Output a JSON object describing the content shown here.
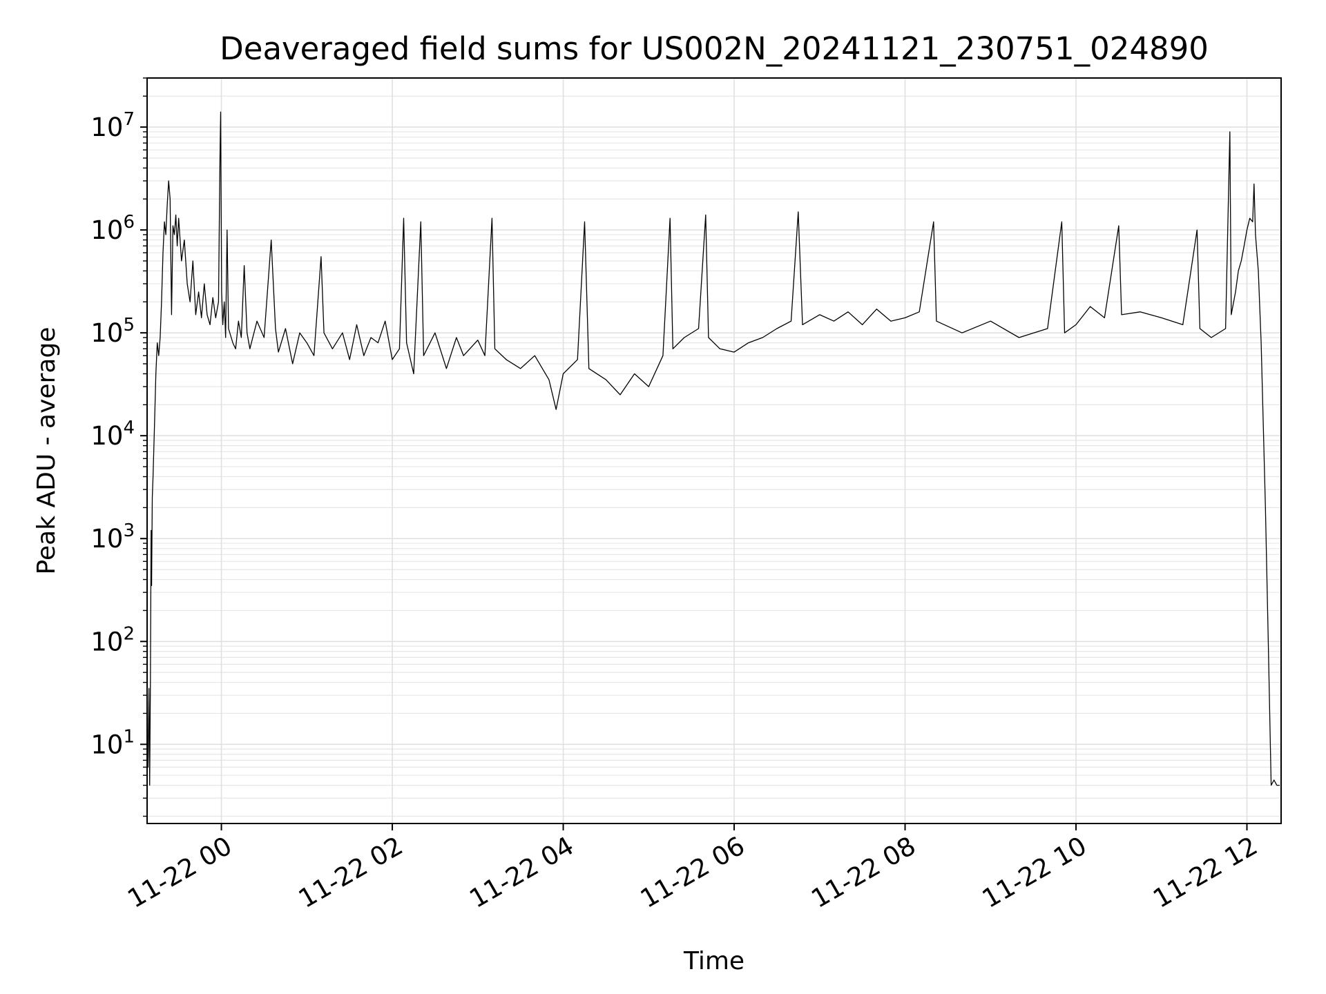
{
  "chart_data": {
    "type": "line",
    "title": "Deaveraged field sums for US002N_20241121_230751_024890",
    "xlabel": "Time",
    "ylabel": "Peak ADU - average",
    "yscale": "log",
    "ylim": [
      1.7,
      30000000
    ],
    "xlim": [
      "2024-11-21 23:07:51",
      "2024-11-22 12:24:00"
    ],
    "grid": true,
    "x_ticks": [
      {
        "value": "2024-11-22 00:00",
        "label": "11-22 00"
      },
      {
        "value": "2024-11-22 02:00",
        "label": "11-22 02"
      },
      {
        "value": "2024-11-22 04:00",
        "label": "11-22 04"
      },
      {
        "value": "2024-11-22 06:00",
        "label": "11-22 06"
      },
      {
        "value": "2024-11-22 08:00",
        "label": "11-22 08"
      },
      {
        "value": "2024-11-22 10:00",
        "label": "11-22 10"
      },
      {
        "value": "2024-11-22 12:00",
        "label": "11-22 12"
      }
    ],
    "y_ticks": [
      {
        "value": 10,
        "base": "10",
        "exp": "1"
      },
      {
        "value": 100,
        "base": "10",
        "exp": "2"
      },
      {
        "value": 1000,
        "base": "10",
        "exp": "3"
      },
      {
        "value": 10000,
        "base": "10",
        "exp": "4"
      },
      {
        "value": 100000,
        "base": "10",
        "exp": "5"
      },
      {
        "value": 1000000,
        "base": "10",
        "exp": "6"
      },
      {
        "value": 10000000,
        "base": "10",
        "exp": "7"
      }
    ],
    "series": [
      {
        "color": "#000000",
        "points": [
          [
            "2024-11-21 23:07:51",
            8
          ],
          [
            "2024-11-21 23:08:30",
            6
          ],
          [
            "2024-11-21 23:09:10",
            35
          ],
          [
            "2024-11-21 23:09:40",
            4
          ],
          [
            "2024-11-21 23:10:10",
            40
          ],
          [
            "2024-11-21 23:10:40",
            1200
          ],
          [
            "2024-11-21 23:11:00",
            350
          ],
          [
            "2024-11-21 23:11:30",
            2500
          ],
          [
            "2024-11-21 23:12:00",
            4000
          ],
          [
            "2024-11-21 23:13:00",
            12000
          ],
          [
            "2024-11-21 23:14:00",
            40000
          ],
          [
            "2024-11-21 23:15:00",
            80000
          ],
          [
            "2024-11-21 23:16:00",
            60000
          ],
          [
            "2024-11-21 23:17:00",
            90000
          ],
          [
            "2024-11-21 23:18:00",
            200000
          ],
          [
            "2024-11-21 23:19:00",
            600000
          ],
          [
            "2024-11-21 23:20:00",
            1200000
          ],
          [
            "2024-11-21 23:21:00",
            900000
          ],
          [
            "2024-11-21 23:22:00",
            1800000
          ],
          [
            "2024-11-21 23:23:00",
            3000000
          ],
          [
            "2024-11-21 23:24:00",
            2000000
          ],
          [
            "2024-11-21 23:25:00",
            150000
          ],
          [
            "2024-11-21 23:26:00",
            1100000
          ],
          [
            "2024-11-21 23:27:00",
            900000
          ],
          [
            "2024-11-21 23:28:00",
            1400000
          ],
          [
            "2024-11-21 23:29:00",
            700000
          ],
          [
            "2024-11-21 23:30:00",
            1300000
          ],
          [
            "2024-11-21 23:32:00",
            500000
          ],
          [
            "2024-11-21 23:34:00",
            800000
          ],
          [
            "2024-11-21 23:36:00",
            300000
          ],
          [
            "2024-11-21 23:38:00",
            200000
          ],
          [
            "2024-11-21 23:40:00",
            500000
          ],
          [
            "2024-11-21 23:42:00",
            150000
          ],
          [
            "2024-11-21 23:44:00",
            250000
          ],
          [
            "2024-11-21 23:46:00",
            140000
          ],
          [
            "2024-11-21 23:48:00",
            300000
          ],
          [
            "2024-11-21 23:50:00",
            150000
          ],
          [
            "2024-11-21 23:52:00",
            120000
          ],
          [
            "2024-11-21 23:54:00",
            220000
          ],
          [
            "2024-11-21 23:56:00",
            140000
          ],
          [
            "2024-11-21 23:58:00",
            200000
          ],
          [
            "2024-11-21 23:59:00",
            5000000
          ],
          [
            "2024-11-21 23:59:30",
            14000000
          ],
          [
            "2024-11-22 00:00:10",
            250000
          ],
          [
            "2024-11-22 00:01:00",
            120000
          ],
          [
            "2024-11-22 00:02:00",
            200000
          ],
          [
            "2024-11-22 00:03:00",
            90000
          ],
          [
            "2024-11-22 00:04:00",
            1000000
          ],
          [
            "2024-11-22 00:05:00",
            110000
          ],
          [
            "2024-11-22 00:08:00",
            80000
          ],
          [
            "2024-11-22 00:10:00",
            70000
          ],
          [
            "2024-11-22 00:12:00",
            130000
          ],
          [
            "2024-11-22 00:14:00",
            90000
          ],
          [
            "2024-11-22 00:16:00",
            450000
          ],
          [
            "2024-11-22 00:18:00",
            100000
          ],
          [
            "2024-11-22 00:20:00",
            70000
          ],
          [
            "2024-11-22 00:25:00",
            130000
          ],
          [
            "2024-11-22 00:30:00",
            90000
          ],
          [
            "2024-11-22 00:35:00",
            800000
          ],
          [
            "2024-11-22 00:38:00",
            110000
          ],
          [
            "2024-11-22 00:40:00",
            65000
          ],
          [
            "2024-11-22 00:45:00",
            110000
          ],
          [
            "2024-11-22 00:50:00",
            50000
          ],
          [
            "2024-11-22 00:55:00",
            100000
          ],
          [
            "2024-11-22 01:00:00",
            80000
          ],
          [
            "2024-11-22 01:05:00",
            60000
          ],
          [
            "2024-11-22 01:10:00",
            550000
          ],
          [
            "2024-11-22 01:12:00",
            100000
          ],
          [
            "2024-11-22 01:18:00",
            70000
          ],
          [
            "2024-11-22 01:25:00",
            100000
          ],
          [
            "2024-11-22 01:30:00",
            55000
          ],
          [
            "2024-11-22 01:35:00",
            120000
          ],
          [
            "2024-11-22 01:40:00",
            60000
          ],
          [
            "2024-11-22 01:45:00",
            90000
          ],
          [
            "2024-11-22 01:50:00",
            80000
          ],
          [
            "2024-11-22 01:55:00",
            130000
          ],
          [
            "2024-11-22 02:00:00",
            55000
          ],
          [
            "2024-11-22 02:05:00",
            70000
          ],
          [
            "2024-11-22 02:08:00",
            1300000
          ],
          [
            "2024-11-22 02:10:00",
            80000
          ],
          [
            "2024-11-22 02:15:00",
            40000
          ],
          [
            "2024-11-22 02:20:00",
            1200000
          ],
          [
            "2024-11-22 02:22:00",
            60000
          ],
          [
            "2024-11-22 02:30:00",
            100000
          ],
          [
            "2024-11-22 02:38:00",
            45000
          ],
          [
            "2024-11-22 02:45:00",
            90000
          ],
          [
            "2024-11-22 02:50:00",
            60000
          ],
          [
            "2024-11-22 03:00:00",
            85000
          ],
          [
            "2024-11-22 03:05:00",
            60000
          ],
          [
            "2024-11-22 03:10:00",
            1300000
          ],
          [
            "2024-11-22 03:12:00",
            70000
          ],
          [
            "2024-11-22 03:20:00",
            55000
          ],
          [
            "2024-11-22 03:30:00",
            45000
          ],
          [
            "2024-11-22 03:40:00",
            60000
          ],
          [
            "2024-11-22 03:50:00",
            35000
          ],
          [
            "2024-11-22 03:55:00",
            18000
          ],
          [
            "2024-11-22 04:00:00",
            40000
          ],
          [
            "2024-11-22 04:10:00",
            55000
          ],
          [
            "2024-11-22 04:15:00",
            1200000
          ],
          [
            "2024-11-22 04:18:00",
            45000
          ],
          [
            "2024-11-22 04:30:00",
            35000
          ],
          [
            "2024-11-22 04:40:00",
            25000
          ],
          [
            "2024-11-22 04:50:00",
            40000
          ],
          [
            "2024-11-22 05:00:00",
            30000
          ],
          [
            "2024-11-22 05:10:00",
            60000
          ],
          [
            "2024-11-22 05:15:00",
            1300000
          ],
          [
            "2024-11-22 05:17:00",
            70000
          ],
          [
            "2024-11-22 05:25:00",
            90000
          ],
          [
            "2024-11-22 05:35:00",
            110000
          ],
          [
            "2024-11-22 05:40:00",
            1400000
          ],
          [
            "2024-11-22 05:42:00",
            90000
          ],
          [
            "2024-11-22 05:50:00",
            70000
          ],
          [
            "2024-11-22 06:00:00",
            65000
          ],
          [
            "2024-11-22 06:10:00",
            80000
          ],
          [
            "2024-11-22 06:20:00",
            90000
          ],
          [
            "2024-11-22 06:30:00",
            110000
          ],
          [
            "2024-11-22 06:40:00",
            130000
          ],
          [
            "2024-11-22 06:45:00",
            1500000
          ],
          [
            "2024-11-22 06:48:00",
            120000
          ],
          [
            "2024-11-22 07:00:00",
            150000
          ],
          [
            "2024-11-22 07:10:00",
            130000
          ],
          [
            "2024-11-22 07:20:00",
            160000
          ],
          [
            "2024-11-22 07:30:00",
            120000
          ],
          [
            "2024-11-22 07:40:00",
            170000
          ],
          [
            "2024-11-22 07:50:00",
            130000
          ],
          [
            "2024-11-22 08:00:00",
            140000
          ],
          [
            "2024-11-22 08:10:00",
            160000
          ],
          [
            "2024-11-22 08:20:00",
            1200000
          ],
          [
            "2024-11-22 08:22:00",
            130000
          ],
          [
            "2024-11-22 08:40:00",
            100000
          ],
          [
            "2024-11-22 09:00:00",
            130000
          ],
          [
            "2024-11-22 09:20:00",
            90000
          ],
          [
            "2024-11-22 09:40:00",
            110000
          ],
          [
            "2024-11-22 09:50:00",
            1200000
          ],
          [
            "2024-11-22 09:52:00",
            100000
          ],
          [
            "2024-11-22 10:00:00",
            120000
          ],
          [
            "2024-11-22 10:10:00",
            180000
          ],
          [
            "2024-11-22 10:20:00",
            140000
          ],
          [
            "2024-11-22 10:30:00",
            1100000
          ],
          [
            "2024-11-22 10:32:00",
            150000
          ],
          [
            "2024-11-22 10:45:00",
            160000
          ],
          [
            "2024-11-22 11:00:00",
            140000
          ],
          [
            "2024-11-22 11:15:00",
            120000
          ],
          [
            "2024-11-22 11:25:00",
            1000000
          ],
          [
            "2024-11-22 11:27:00",
            110000
          ],
          [
            "2024-11-22 11:35:00",
            90000
          ],
          [
            "2024-11-22 11:45:00",
            110000
          ],
          [
            "2024-11-22 11:48:00",
            9000000
          ],
          [
            "2024-11-22 11:49:00",
            150000
          ],
          [
            "2024-11-22 11:52:00",
            250000
          ],
          [
            "2024-11-22 11:54:00",
            400000
          ],
          [
            "2024-11-22 11:56:00",
            500000
          ],
          [
            "2024-11-22 11:58:00",
            700000
          ],
          [
            "2024-11-22 12:00:00",
            1000000
          ],
          [
            "2024-11-22 12:02:00",
            1300000
          ],
          [
            "2024-11-22 12:04:00",
            1200000
          ],
          [
            "2024-11-22 12:05:00",
            2800000
          ],
          [
            "2024-11-22 12:06:00",
            900000
          ],
          [
            "2024-11-22 12:08:00",
            400000
          ],
          [
            "2024-11-22 12:10:00",
            80000
          ],
          [
            "2024-11-22 12:13:00",
            2000
          ],
          [
            "2024-11-22 12:15:00",
            100
          ],
          [
            "2024-11-22 12:17:00",
            4
          ],
          [
            "2024-11-22 12:19:00",
            4.5
          ],
          [
            "2024-11-22 12:21:00",
            4
          ],
          [
            "2024-11-22 12:23:00",
            4
          ]
        ]
      }
    ]
  }
}
